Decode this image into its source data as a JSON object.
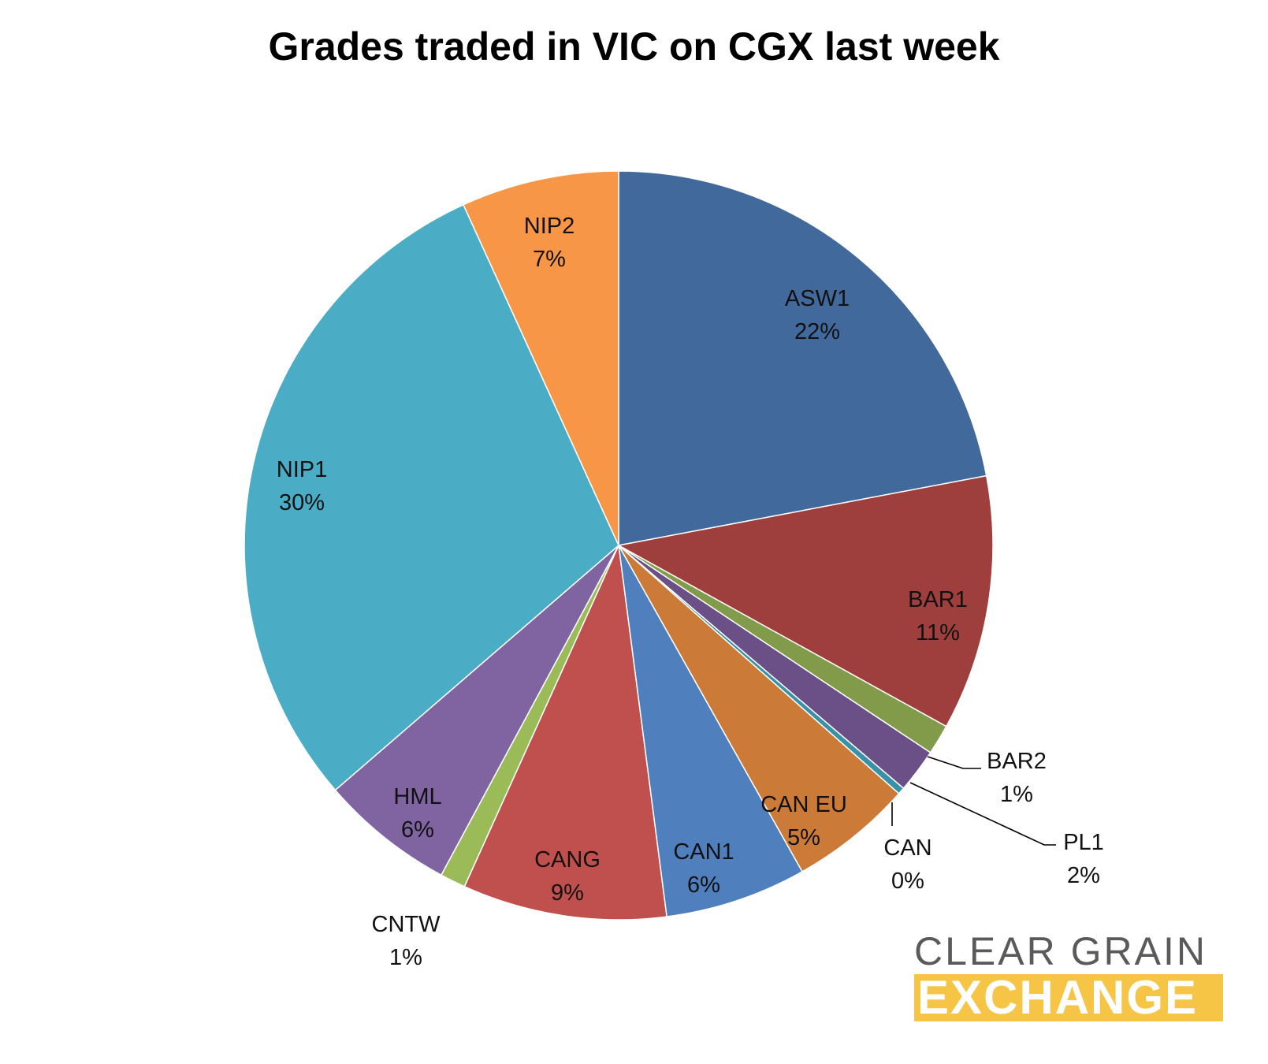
{
  "chart_data": {
    "type": "pie",
    "title": "Grades traded in VIC on CGX last week",
    "slices": [
      {
        "label": "ASW1",
        "value": 22,
        "value_label": "22%",
        "color": "#41699c"
      },
      {
        "label": "BAR1",
        "value": 11,
        "value_label": "11%",
        "color": "#9e3f3e"
      },
      {
        "label": "BAR2",
        "value": 1.3,
        "value_label": "1%",
        "color": "#829b4a"
      },
      {
        "label": "PL1",
        "value": 1.9,
        "value_label": "2%",
        "color": "#6a5086"
      },
      {
        "label": "CAN",
        "value": 0.3,
        "value_label": "0%",
        "color": "#3891a7"
      },
      {
        "label": "CAN EU",
        "value": 5.3,
        "value_label": "5%",
        "color": "#cc7a38"
      },
      {
        "label": "CAN1",
        "value": 6.1,
        "value_label": "6%",
        "color": "#4f80bd"
      },
      {
        "label": "CANG",
        "value": 8.8,
        "value_label": "9%",
        "color": "#c0504d"
      },
      {
        "label": "CNTW",
        "value": 1.1,
        "value_label": "1%",
        "color": "#9bbb59"
      },
      {
        "label": "HML",
        "value": 5.8,
        "value_label": "6%",
        "color": "#8064a2"
      },
      {
        "label": "NIP1",
        "value": 29.5,
        "value_label": "30%",
        "color": "#4bacc6"
      },
      {
        "label": "NIP2",
        "value": 6.8,
        "value_label": "7%",
        "color": "#f79646"
      }
    ],
    "start_angle": "12 o'clock",
    "direction": "clockwise",
    "legend": "none"
  },
  "logo": {
    "line1": "CLEAR GRAIN",
    "line2": "EXCHANGE",
    "colors": {
      "line1": "#5a5a5a",
      "line2_bg": "#f6c545"
    }
  }
}
